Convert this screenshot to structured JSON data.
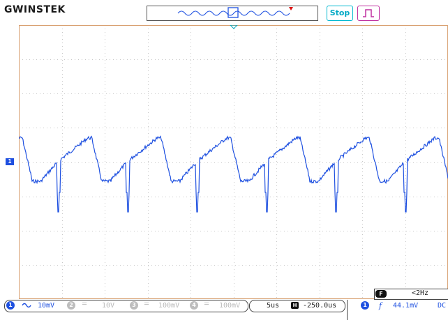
{
  "header": {
    "brand": "GWINSTEK",
    "run_state_label": "Stop",
    "trigger_type_icon": "rising-edge-pulse-icon"
  },
  "channel1": {
    "marker_label": "1",
    "coupling_icon": "ac-coupling-icon",
    "scale": "10mV",
    "color": "#1e50e0"
  },
  "channels_off": [
    {
      "number": "2",
      "scale": "10V"
    },
    {
      "number": "3",
      "scale": "100mV"
    },
    {
      "number": "4",
      "scale": "100mV"
    }
  ],
  "timebase": {
    "scale": "5us",
    "position": "-250.0us"
  },
  "trigger": {
    "source": "1",
    "slope_symbol": "f",
    "level": "44.1mV",
    "coupling": "DC"
  },
  "frequency_counter": {
    "badge": "F",
    "value": "<2Hz"
  },
  "colors": {
    "grid": "#c8c8c8",
    "frame": "#d8a070",
    "trace": "#1e50e0",
    "stop": "#00a8c4",
    "trigger_icon": "#c030a0",
    "memory_marker": "#dd1111"
  }
}
